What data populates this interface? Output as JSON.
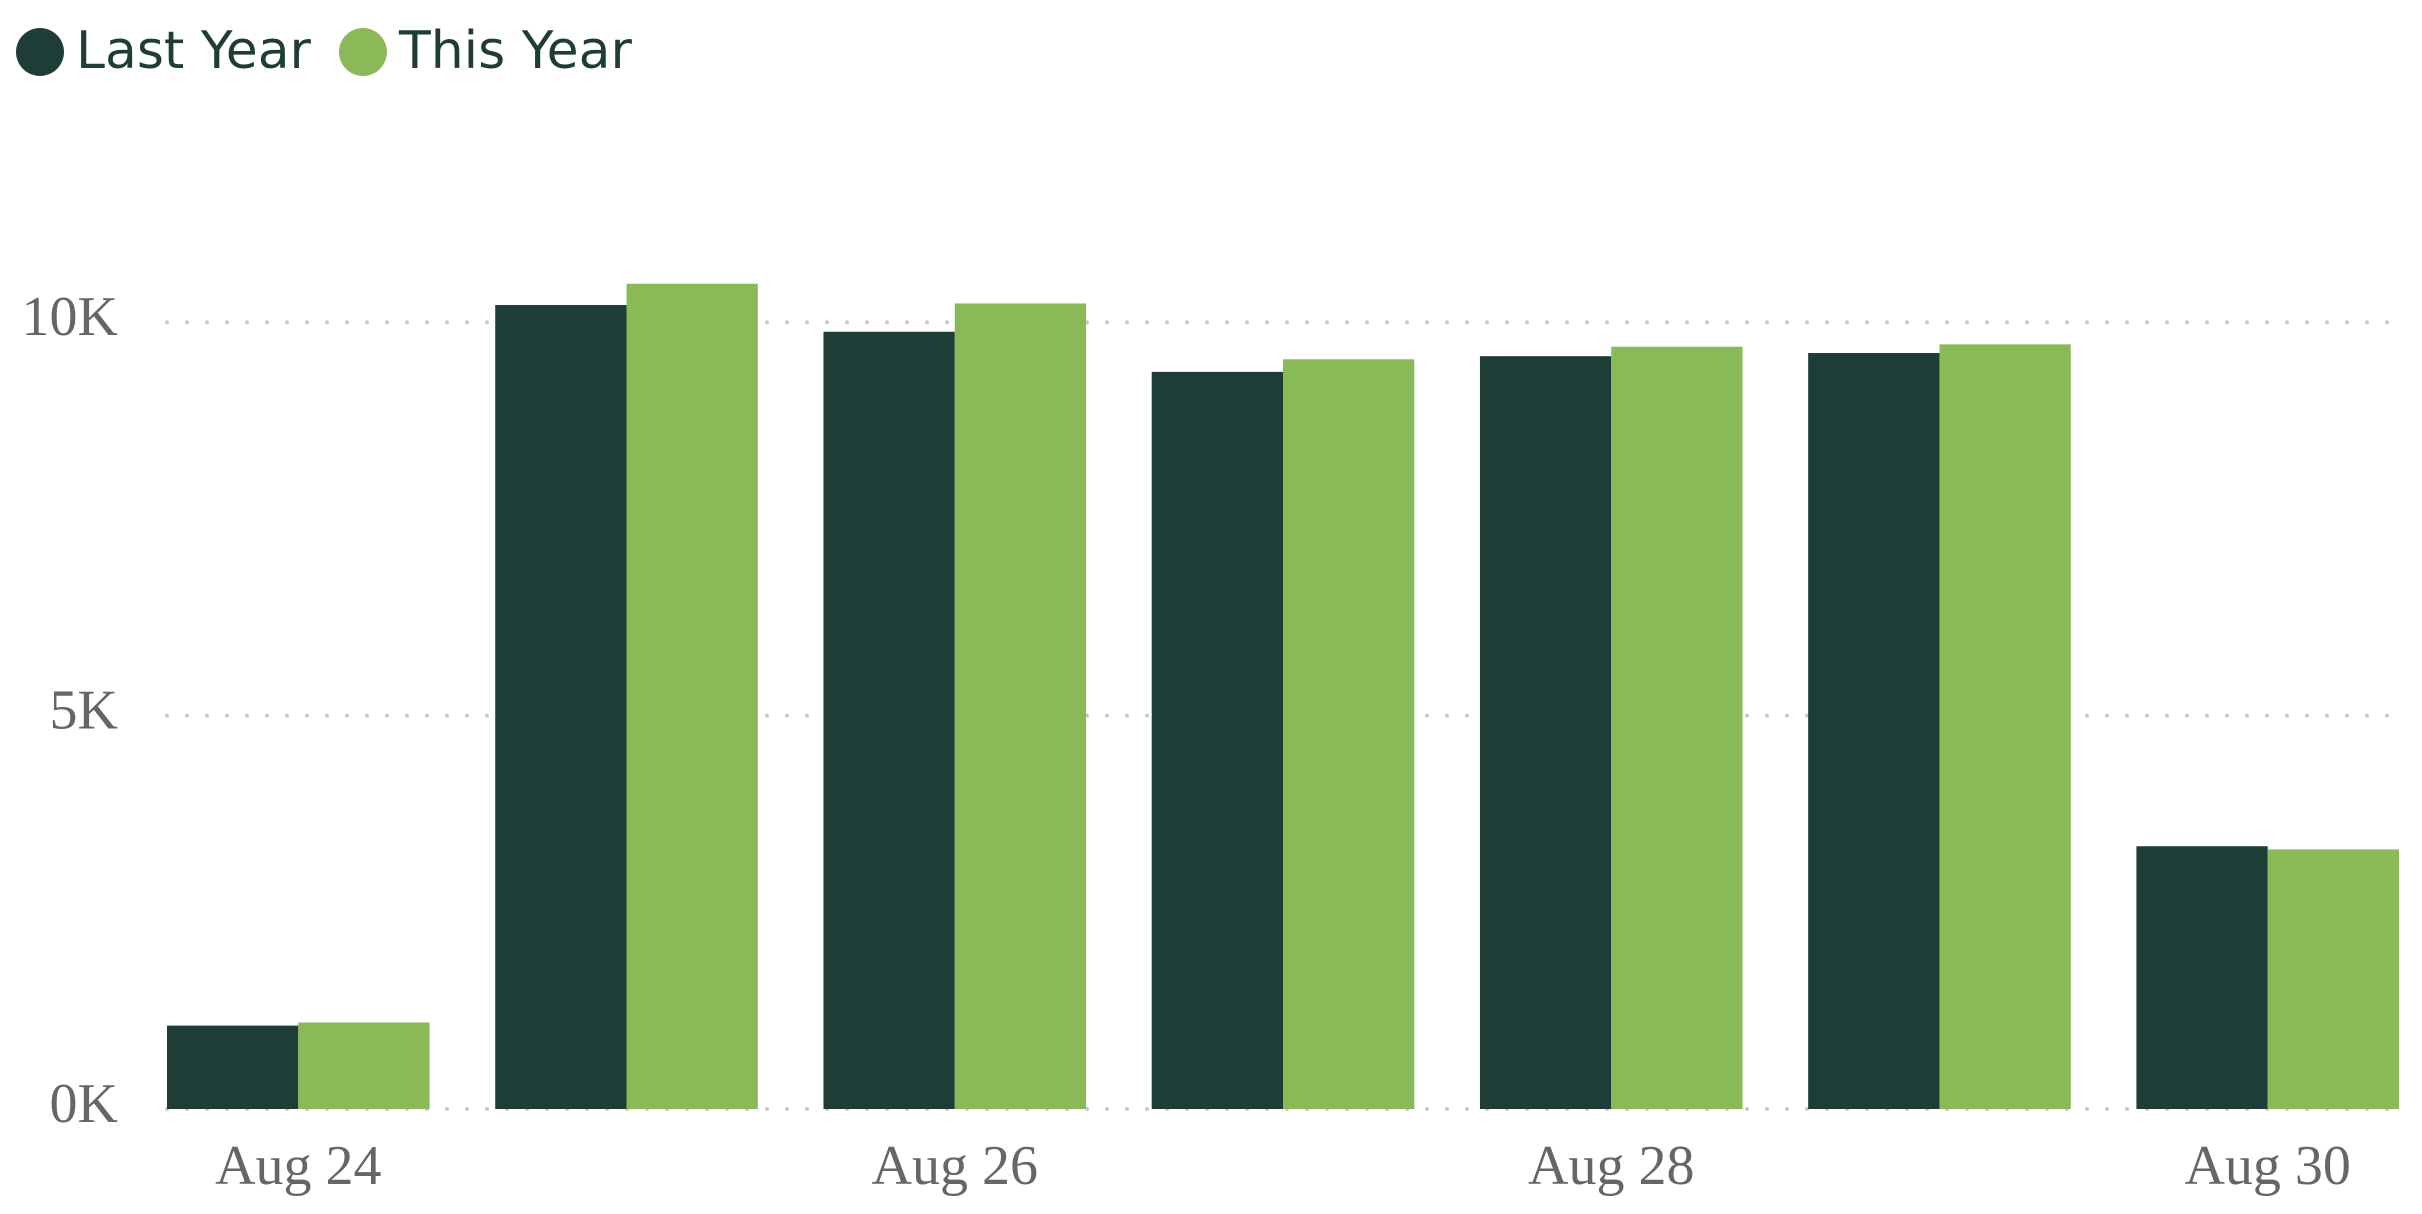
{
  "chart_data": {
    "type": "bar",
    "categories": [
      "Aug 24",
      null,
      "Aug 26",
      null,
      "Aug 28",
      null,
      "Aug 30"
    ],
    "series": [
      {
        "name": "Last Year",
        "color": "#1e3d36",
        "values": [
          1060,
          10220,
          9880,
          9370,
          9570,
          9610,
          3340
        ]
      },
      {
        "name": "This Year",
        "color": "#8aba57",
        "values": [
          1100,
          10490,
          10240,
          9530,
          9690,
          9720,
          3300
        ]
      }
    ],
    "ylim": [
      0,
      12000
    ],
    "yticks": [
      {
        "value": 0,
        "label": "0K"
      },
      {
        "value": 5000,
        "label": "5K"
      },
      {
        "value": 10000,
        "label": "10K"
      }
    ],
    "grid": true,
    "legend": "top-left"
  }
}
